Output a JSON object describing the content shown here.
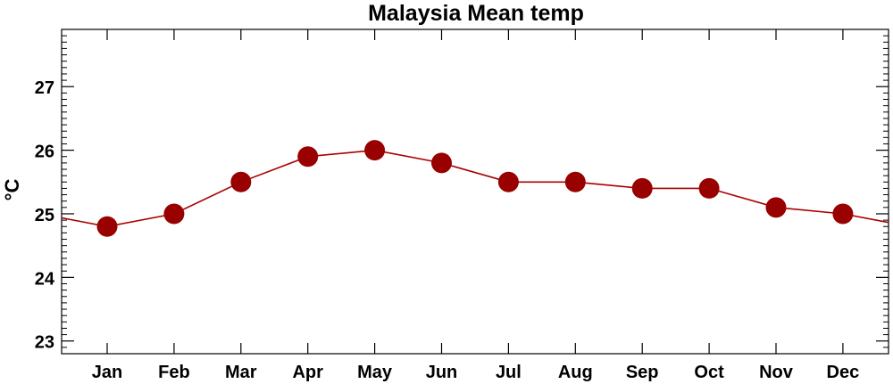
{
  "chart_data": {
    "type": "line",
    "title": "Malaysia Mean temp",
    "xlabel": "",
    "ylabel": "°C",
    "categories": [
      "Jan",
      "Feb",
      "Mar",
      "Apr",
      "May",
      "Jun",
      "Jul",
      "Aug",
      "Sep",
      "Oct",
      "Nov",
      "Dec"
    ],
    "series": [
      {
        "values": [
          24.8,
          25.0,
          25.5,
          25.9,
          26.0,
          25.8,
          25.5,
          25.5,
          25.4,
          25.4,
          25.1,
          25.0
        ]
      }
    ],
    "ylim": [
      22.8,
      27.9
    ],
    "yticks": [
      23,
      24,
      25,
      26,
      27
    ],
    "wrap_ends": true,
    "grid": false,
    "legend": "none",
    "colors": {
      "series": "#990000",
      "line": "#aa0000",
      "axis": "#000000"
    }
  }
}
